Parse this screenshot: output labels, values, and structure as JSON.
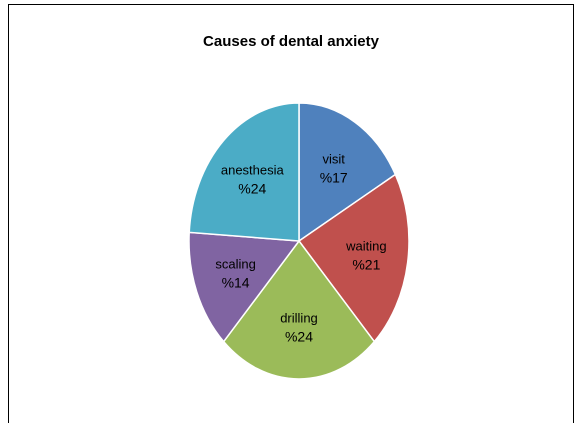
{
  "chart_data": {
    "type": "pie",
    "title": "Causes of dental anxiety",
    "categories": [
      "visit",
      "waiting",
      "drilling",
      "scaling",
      "anesthesia"
    ],
    "values": [
      17,
      21,
      24,
      14,
      24
    ],
    "value_labels": [
      "%17",
      "%21",
      "%24",
      "%14",
      "%24"
    ],
    "colors": [
      "#4F81BD",
      "#C0504D",
      "#9BBB59",
      "#8064A2",
      "#4BACC6"
    ],
    "legend": "none",
    "start_angle_deg": 0,
    "direction": "clockwise"
  }
}
